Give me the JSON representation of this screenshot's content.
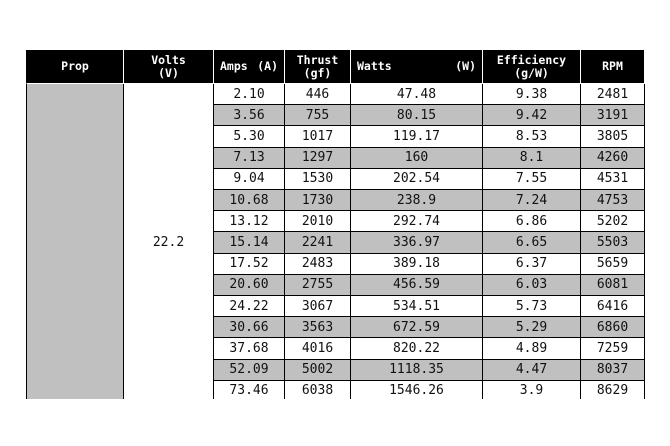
{
  "table": {
    "headers": [
      {
        "label": "Prop"
      },
      {
        "label": "Volts",
        "unit": "(V)"
      },
      {
        "label": "Amps",
        "unit": "(A)"
      },
      {
        "label": "Thrust",
        "unit": "(gf)"
      },
      {
        "label": "Watts",
        "unit": "(W)"
      },
      {
        "label": "Efficiency",
        "unit": "(g/W)"
      },
      {
        "label": "RPM"
      }
    ],
    "volts": "22.2",
    "rows": [
      [
        "2.10",
        "446",
        "47.48",
        "9.38",
        "2481"
      ],
      [
        "3.56",
        "755",
        "80.15",
        "9.42",
        "3191"
      ],
      [
        "5.30",
        "1017",
        "119.17",
        "8.53",
        "3805"
      ],
      [
        "7.13",
        "1297",
        "160",
        "8.1",
        "4260"
      ],
      [
        "9.04",
        "1530",
        "202.54",
        "7.55",
        "4531"
      ],
      [
        "10.68",
        "1730",
        "238.9",
        "7.24",
        "4753"
      ],
      [
        "13.12",
        "2010",
        "292.74",
        "6.86",
        "5202"
      ],
      [
        "15.14",
        "2241",
        "336.97",
        "6.65",
        "5503"
      ],
      [
        "17.52",
        "2483",
        "389.18",
        "6.37",
        "5659"
      ],
      [
        "20.60",
        "2755",
        "456.59",
        "6.03",
        "6081"
      ],
      [
        "24.22",
        "3067",
        "534.51",
        "5.73",
        "6416"
      ],
      [
        "30.66",
        "3563",
        "672.59",
        "5.29",
        "6860"
      ],
      [
        "37.68",
        "4016",
        "820.22",
        "4.89",
        "7259"
      ],
      [
        "52.09",
        "5002",
        "1118.35",
        "4.47",
        "8037"
      ],
      [
        "73.46",
        "6038",
        "1546.26",
        "3.9",
        "8629"
      ]
    ]
  }
}
